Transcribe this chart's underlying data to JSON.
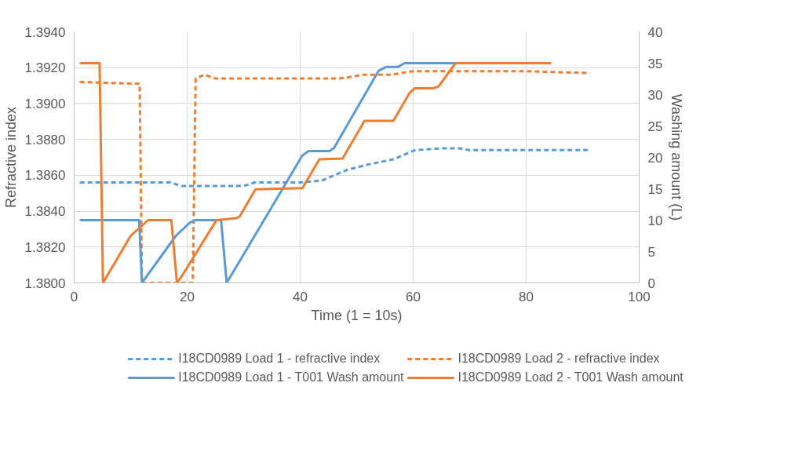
{
  "chart_data": {
    "type": "line",
    "xlabel": "Time (1 = 10s)",
    "ylabel": "Refractive index",
    "y2label": "Washing amount (L)",
    "xlim": [
      0,
      100
    ],
    "xticks": [
      0,
      20,
      40,
      60,
      80,
      100
    ],
    "ylim": [
      1.38,
      1.394
    ],
    "yticks": [
      {
        "value": 1.38,
        "label": "1.3800"
      },
      {
        "value": 1.382,
        "label": "1.3820"
      },
      {
        "value": 1.384,
        "label": "1.3840"
      },
      {
        "value": 1.386,
        "label": "1.3860"
      },
      {
        "value": 1.388,
        "label": "1.3880"
      },
      {
        "value": 1.39,
        "label": "1.3900"
      },
      {
        "value": 1.392,
        "label": "1.3920"
      },
      {
        "value": 1.394,
        "label": "1.3940"
      }
    ],
    "y2lim": [
      0,
      40
    ],
    "y2ticks": [
      0,
      5,
      10,
      15,
      20,
      25,
      30,
      35,
      40
    ],
    "grid": true,
    "legend": "bottom",
    "marker": "none",
    "series": [
      {
        "name": "I18CD0989 Load 1 - refractive index",
        "color": "#5b9bd5",
        "line_style": "dashed",
        "x": [
          1,
          10,
          15,
          17,
          19,
          25,
          30,
          32,
          40,
          43.8,
          48.3,
          52,
          56.6,
          60.3,
          65,
          68.2,
          70,
          80,
          91
        ],
        "values": [
          1.3856,
          1.3856,
          1.3856,
          1.3856,
          1.3854,
          1.3854,
          1.3854,
          1.3856,
          1.3856,
          1.3857,
          1.3863,
          1.3866,
          1.3869,
          1.3874,
          1.3875,
          1.3875,
          1.3874,
          1.3874,
          1.3874
        ]
      },
      {
        "name": "I18CD0989 Load 2 - refractive index",
        "color": "#ed7d31",
        "line_style": "dashed",
        "x": [
          1,
          11.6,
          12,
          21,
          21.5,
          23,
          25,
          40,
          47,
          49.3,
          51,
          56,
          59.9,
          70,
          80,
          91
        ],
        "values": [
          1.3912,
          1.3911,
          1.38,
          1.38,
          1.3914,
          1.3916,
          1.3914,
          1.3914,
          1.3914,
          1.3915,
          1.3916,
          1.3916,
          1.3918,
          1.3918,
          1.3918,
          1.3917
        ]
      },
      {
        "name": "I18CD0989 Load 1 - T001 Wash amount",
        "color": "#5b9bd5",
        "line_style": "solid",
        "axis": "y2",
        "x": [
          1,
          11.5,
          12,
          18,
          20.5,
          21.5,
          26,
          27,
          40.4,
          41.5,
          45.2,
          46,
          53.9,
          55.2,
          57.3,
          58.5,
          67.5
        ],
        "values": [
          10,
          10,
          0,
          7.5,
          9.6,
          10,
          10,
          0,
          20.3,
          21,
          21,
          21.5,
          33.8,
          34.4,
          34.4,
          35,
          35
        ]
      },
      {
        "name": "I18CD0989 Load 2 - T001 Wash amount",
        "color": "#ed7d31",
        "line_style": "solid",
        "axis": "y2",
        "x": [
          1,
          4.5,
          5.1,
          10,
          13.1,
          17.2,
          18.2,
          19,
          25.2,
          28.7,
          29.3,
          32.1,
          40.4,
          43.4,
          47.5,
          51.4,
          56.5,
          59.4,
          60.3,
          63.5,
          64.5,
          67.5,
          84.4
        ],
        "values": [
          35,
          35,
          0,
          7.5,
          10,
          10,
          0,
          1,
          10,
          10.3,
          10.6,
          14.9,
          15.1,
          19.7,
          19.8,
          25.8,
          25.8,
          30.3,
          31,
          31,
          31.3,
          35,
          35
        ]
      }
    ]
  }
}
